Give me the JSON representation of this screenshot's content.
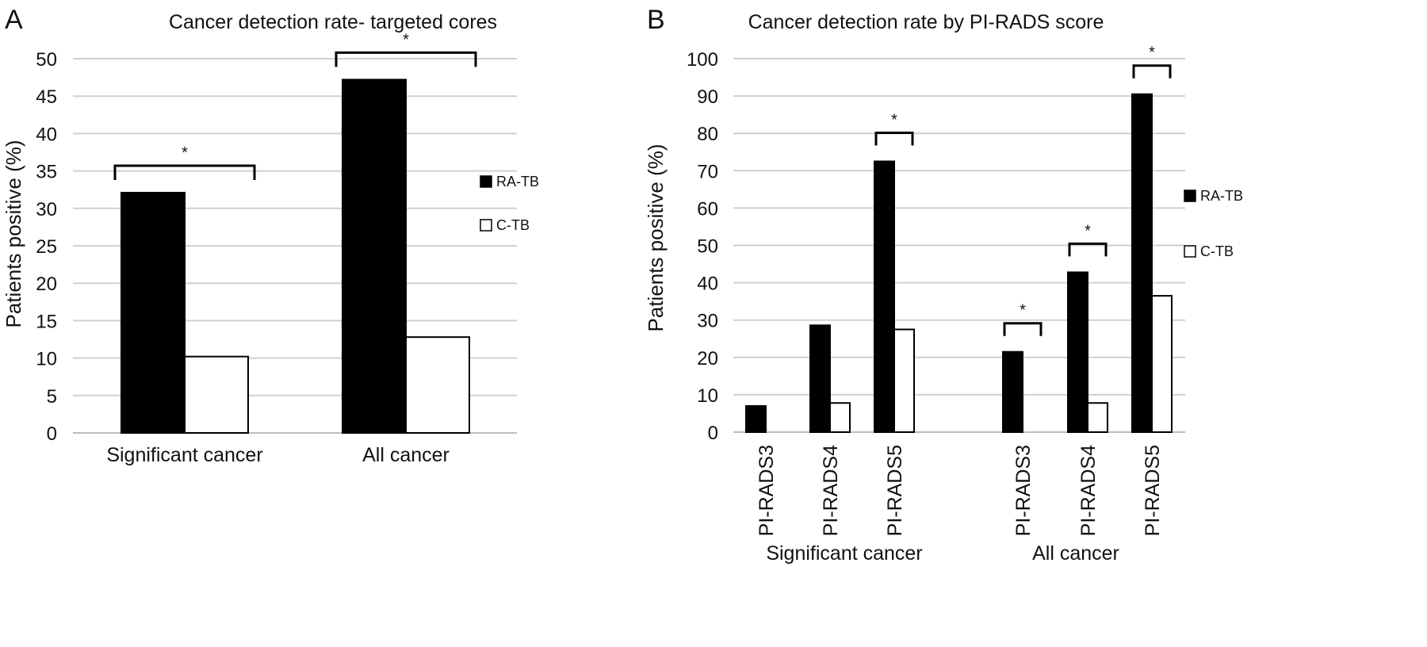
{
  "panels": [
    {
      "letter": "A",
      "chart_data": {
        "type": "bar",
        "title": "Cancer detection rate- targeted cores",
        "ylabel": "Patients positive (%)",
        "xlabel": "",
        "ylim": [
          0,
          50
        ],
        "yticks": [
          0,
          5,
          10,
          15,
          20,
          25,
          30,
          35,
          40,
          45,
          50
        ],
        "categories": [
          "Significant cancer",
          "All cancer"
        ],
        "series": [
          {
            "name": "RA-TB",
            "color": "#000000",
            "values": [
              32.1,
              47.2
            ]
          },
          {
            "name": "C-TB",
            "color": "#ffffff",
            "values": [
              10.2,
              12.8
            ]
          }
        ],
        "significance": [
          {
            "category": "Significant cancer",
            "label": "*"
          },
          {
            "category": "All cancer",
            "label": "*"
          }
        ],
        "grid": true,
        "legend": "right"
      }
    },
    {
      "letter": "B",
      "chart_data": {
        "type": "bar",
        "title": "Cancer detection rate by PI-RADS score",
        "ylabel": "Patients positive (%)",
        "xlabel": "",
        "ylim": [
          0,
          100
        ],
        "yticks": [
          0,
          10,
          20,
          30,
          40,
          50,
          60,
          70,
          80,
          90,
          100
        ],
        "groups": [
          {
            "label": "Significant cancer",
            "categories": [
              "PI-RADS3",
              "PI-RADS4",
              "PI-RADS5"
            ]
          },
          {
            "label": "All cancer",
            "categories": [
              "PI-RADS3",
              "PI-RADS4",
              "PI-RADS5"
            ]
          }
        ],
        "series": [
          {
            "name": "RA-TB",
            "color": "#000000",
            "values": [
              7,
              28.6,
              72.5,
              21.5,
              42.8,
              90.5
            ]
          },
          {
            "name": "C-TB",
            "color": "#ffffff",
            "values": [
              0,
              7.8,
              27.5,
              0,
              7.8,
              36.5
            ]
          }
        ],
        "significance": [
          {
            "group": "Significant cancer",
            "category": "PI-RADS5",
            "label": "*"
          },
          {
            "group": "All cancer",
            "category": "PI-RADS3",
            "label": "*"
          },
          {
            "group": "All cancer",
            "category": "PI-RADS4",
            "label": "*"
          },
          {
            "group": "All cancer",
            "category": "PI-RADS5",
            "label": "*"
          }
        ],
        "grid": true,
        "legend": "right"
      }
    }
  ]
}
